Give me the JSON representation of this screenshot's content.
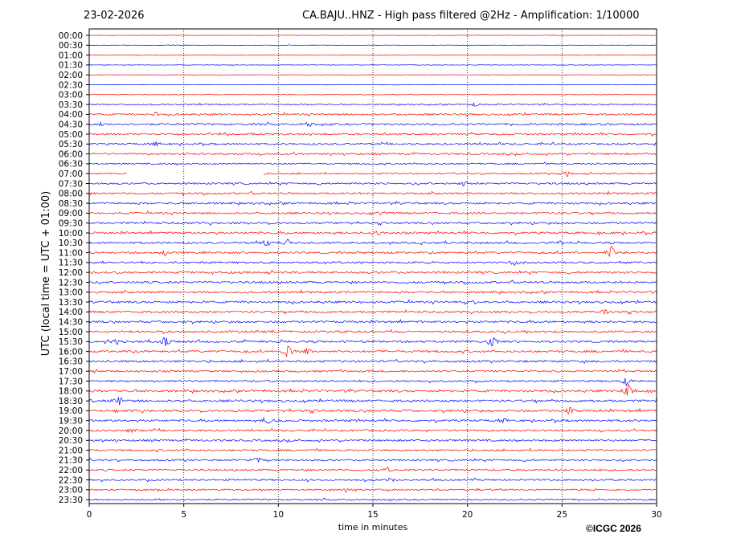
{
  "header": {
    "date": "23-02-2026",
    "title": "CA.BAJU..HNZ - High pass filtered @2Hz - Amplification: 1/10000"
  },
  "footer": {
    "copyright": "©ICGC 2026"
  },
  "chart_data": {
    "type": "line",
    "title": "CA.BAJU..HNZ - High pass filtered @2Hz - Amplification: 1/10000",
    "xlabel": "time in minutes",
    "ylabel": "UTC (local time = UTC + 01:00)",
    "xlim": [
      0,
      30
    ],
    "xticks": [
      "0",
      "5",
      "10",
      "15",
      "20",
      "25",
      "30"
    ],
    "grid": "vertical dotted at 5, 10, 15, 20, 25",
    "colors": {
      "odd": "#ff0000",
      "even": "#0000ff"
    },
    "rows": [
      "00:00",
      "00:30",
      "01:00",
      "01:30",
      "02:00",
      "02:30",
      "03:00",
      "03:30",
      "04:00",
      "04:30",
      "05:00",
      "05:30",
      "06:00",
      "06:30",
      "07:00",
      "07:30",
      "08:00",
      "08:30",
      "09:00",
      "09:30",
      "10:00",
      "10:30",
      "11:00",
      "11:30",
      "12:00",
      "12:30",
      "13:00",
      "13:30",
      "14:00",
      "14:30",
      "15:00",
      "15:30",
      "16:00",
      "16:30",
      "17:00",
      "17:30",
      "18:00",
      "18:30",
      "19:00",
      "19:30",
      "20:00",
      "20:30",
      "21:00",
      "21:30",
      "22:00",
      "22:30",
      "23:00",
      "23:30"
    ],
    "row_colors": [
      "red",
      "blue",
      "red",
      "blue",
      "red",
      "blue",
      "red",
      "blue",
      "red",
      "blue",
      "red",
      "blue",
      "red",
      "blue",
      "red",
      "blue",
      "red",
      "blue",
      "red",
      "blue",
      "red",
      "blue",
      "red",
      "blue",
      "red",
      "blue",
      "red",
      "blue",
      "red",
      "blue",
      "red",
      "blue",
      "red",
      "blue",
      "red",
      "blue",
      "red",
      "blue",
      "red",
      "blue",
      "red",
      "blue",
      "red",
      "blue",
      "red",
      "blue",
      "red",
      "blue"
    ],
    "noise_level": [
      0.3,
      0.3,
      0.3,
      0.3,
      0.3,
      0.3,
      0.4,
      0.8,
      1.2,
      1.3,
      1.2,
      1.2,
      1.2,
      1.0,
      1.0,
      1.2,
      1.3,
      1.3,
      1.3,
      1.3,
      1.4,
      1.3,
      1.3,
      1.3,
      1.4,
      1.4,
      1.4,
      1.4,
      1.4,
      1.4,
      1.4,
      1.4,
      1.4,
      1.4,
      1.2,
      1.2,
      1.5,
      1.5,
      1.5,
      1.4,
      1.3,
      1.3,
      1.2,
      1.2,
      1.2,
      1.2,
      1.0,
      1.0
    ],
    "events": [
      {
        "row": "03:30",
        "minute": 20.4,
        "amplitude": 2.5
      },
      {
        "row": "04:00",
        "minute": 3.5,
        "amplitude": 2.5
      },
      {
        "row": "04:30",
        "minute": 11.7,
        "amplitude": 3
      },
      {
        "row": "04:30",
        "minute": 0.6,
        "amplitude": 2.5
      },
      {
        "row": "05:30",
        "minute": 3.5,
        "amplitude": 2.5
      },
      {
        "row": "07:00",
        "minute": 25.3,
        "amplitude": 3
      },
      {
        "row": "07:30",
        "minute": 19.8,
        "amplitude": 2.5
      },
      {
        "row": "09:00",
        "minute": 15.4,
        "amplitude": 2.5
      },
      {
        "row": "10:00",
        "minute": 15.3,
        "amplitude": 2.5
      },
      {
        "row": "10:30",
        "minute": 9.4,
        "amplitude": 4
      },
      {
        "row": "10:30",
        "minute": 10.5,
        "amplitude": 4
      },
      {
        "row": "10:30",
        "minute": 24.9,
        "amplitude": 3
      },
      {
        "row": "11:00",
        "minute": 27.6,
        "amplitude": 8
      },
      {
        "row": "11:00",
        "minute": 4.0,
        "amplitude": 2.5
      },
      {
        "row": "11:30",
        "minute": 22.5,
        "amplitude": 3
      },
      {
        "row": "13:30",
        "minute": 20.3,
        "amplitude": 3
      },
      {
        "row": "14:00",
        "minute": 27.3,
        "amplitude": 3
      },
      {
        "row": "15:30",
        "minute": 4.0,
        "amplitude": 6
      },
      {
        "row": "15:30",
        "minute": 21.3,
        "amplitude": 6
      },
      {
        "row": "15:30",
        "minute": 1.5,
        "amplitude": 3
      },
      {
        "row": "16:00",
        "minute": 10.5,
        "amplitude": 7
      },
      {
        "row": "16:00",
        "minute": 11.5,
        "amplitude": 5
      },
      {
        "row": "17:30",
        "minute": 28.4,
        "amplitude": 5
      },
      {
        "row": "18:00",
        "minute": 28.5,
        "amplitude": 9
      },
      {
        "row": "18:30",
        "minute": 1.6,
        "amplitude": 5
      },
      {
        "row": "19:00",
        "minute": 25.4,
        "amplitude": 4
      },
      {
        "row": "19:00",
        "minute": 1.4,
        "amplitude": 2.5
      },
      {
        "row": "19:30",
        "minute": 9.5,
        "amplitude": 4
      },
      {
        "row": "19:30",
        "minute": 21.9,
        "amplitude": 3
      },
      {
        "row": "20:00",
        "minute": 2.2,
        "amplitude": 2.5
      },
      {
        "row": "21:30",
        "minute": 8.9,
        "amplitude": 3
      },
      {
        "row": "22:00",
        "minute": 15.8,
        "amplitude": 2.5
      },
      {
        "row": "22:30",
        "minute": 15.9,
        "amplitude": 2.5
      },
      {
        "row": "23:00",
        "minute": 13.6,
        "amplitude": 2.5
      }
    ],
    "gap": {
      "row": "07:00",
      "from": 2.0,
      "to": 9.2
    }
  }
}
